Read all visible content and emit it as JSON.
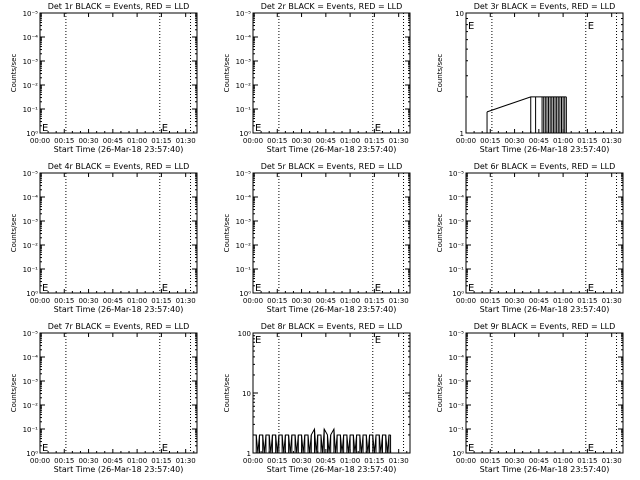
{
  "chart_data": [
    {
      "type": "line",
      "title": "Det 1r BLACK = Events, RED = LLD",
      "xlabel": "Start Time (26-Mar-18 23:57:40)",
      "ylabel": "Counts/sec",
      "x_tick_labels": [
        "00:00",
        "00:15",
        "00:30",
        "00:45",
        "01:00",
        "01:15",
        "01:30"
      ],
      "x_range_minutes": [
        0,
        97
      ],
      "y_scale": "log",
      "y_tick_labels": [
        "10⁰",
        "10⁻¹",
        "10⁻²",
        "10⁻³",
        "10⁻⁴",
        "10⁻⁵"
      ],
      "vlines_minutes": [
        16,
        74,
        93
      ],
      "series": [],
      "e_markers": [
        {
          "x": 0,
          "y_frac": 0.05
        },
        {
          "x": 74,
          "y_frac": 0.05
        }
      ]
    },
    {
      "type": "line",
      "title": "Det 2r BLACK = Events, RED = LLD",
      "xlabel": "Start Time (26-Mar-18 23:57:40)",
      "ylabel": "Counts/sec",
      "x_tick_labels": [
        "00:00",
        "00:15",
        "00:30",
        "00:45",
        "01:00",
        "01:15",
        "01:30"
      ],
      "x_range_minutes": [
        0,
        97
      ],
      "y_scale": "log",
      "y_tick_labels": [
        "10⁰",
        "10⁻¹",
        "10⁻²",
        "10⁻³",
        "10⁻⁴",
        "10⁻⁵"
      ],
      "vlines_minutes": [
        16,
        74,
        93
      ],
      "series": [],
      "e_markers": [
        {
          "x": 0,
          "y_frac": 0.05
        },
        {
          "x": 74,
          "y_frac": 0.05
        }
      ]
    },
    {
      "type": "line",
      "title": "Det 3r BLACK = Events, RED = LLD",
      "xlabel": "Start Time (26-Mar-18 23:57:40)",
      "ylabel": "Counts/sec",
      "x_tick_labels": [
        "00:00",
        "00:15",
        "00:30",
        "00:45",
        "01:00",
        "01:15",
        "01:30"
      ],
      "x_range_minutes": [
        0,
        97
      ],
      "y_scale": "log",
      "y_tick_labels": [
        "1",
        "10"
      ],
      "vlines_minutes": [
        16,
        74,
        93
      ],
      "series": [
        {
          "values": [
            [
              13,
              1.5
            ],
            [
              40,
              2
            ],
            [
              43,
              2
            ],
            [
              47,
              2
            ],
            [
              48,
              2
            ],
            [
              49,
              2
            ],
            [
              50,
              2
            ],
            [
              51,
              2
            ],
            [
              52,
              2
            ],
            [
              53,
              2
            ],
            [
              54,
              2
            ],
            [
              55,
              2
            ],
            [
              56,
              2
            ],
            [
              57,
              2
            ],
            [
              58,
              2
            ],
            [
              59,
              2
            ],
            [
              60,
              2
            ],
            [
              61,
              2
            ],
            [
              62,
              2
            ]
          ]
        }
      ],
      "e_markers": [
        {
          "x": 0,
          "y_frac": 0.9
        },
        {
          "x": 74,
          "y_frac": 0.9
        }
      ]
    },
    {
      "type": "line",
      "title": "Det 4r BLACK = Events, RED = LLD",
      "xlabel": "Start Time (26-Mar-18 23:57:40)",
      "ylabel": "Counts/sec",
      "x_tick_labels": [
        "00:00",
        "00:15",
        "00:30",
        "00:45",
        "01:00",
        "01:15",
        "01:30"
      ],
      "x_range_minutes": [
        0,
        97
      ],
      "y_scale": "log",
      "y_tick_labels": [
        "10⁰",
        "10⁻¹",
        "10⁻²",
        "10⁻³",
        "10⁻⁴",
        "10⁻⁵"
      ],
      "vlines_minutes": [
        16,
        74,
        93
      ],
      "series": [],
      "e_markers": [
        {
          "x": 0,
          "y_frac": 0.05
        },
        {
          "x": 74,
          "y_frac": 0.05
        }
      ]
    },
    {
      "type": "line",
      "title": "Det 5r BLACK = Events, RED = LLD",
      "xlabel": "Start Time (26-Mar-18 23:57:40)",
      "ylabel": "Counts/sec",
      "x_tick_labels": [
        "00:00",
        "00:15",
        "00:30",
        "00:45",
        "01:00",
        "01:15",
        "01:30"
      ],
      "x_range_minutes": [
        0,
        97
      ],
      "y_scale": "log",
      "y_tick_labels": [
        "10⁰",
        "10⁻¹",
        "10⁻²",
        "10⁻³",
        "10⁻⁴",
        "10⁻⁵"
      ],
      "vlines_minutes": [
        16,
        74,
        93
      ],
      "series": [],
      "e_markers": [
        {
          "x": 0,
          "y_frac": 0.05
        },
        {
          "x": 74,
          "y_frac": 0.05
        }
      ]
    },
    {
      "type": "line",
      "title": "Det 6r BLACK = Events, RED = LLD",
      "xlabel": "Start Time (26-Mar-18 23:57:40)",
      "ylabel": "Counts/sec",
      "x_tick_labels": [
        "00:00",
        "00:15",
        "00:30",
        "00:45",
        "01:00",
        "01:15",
        "01:30"
      ],
      "x_range_minutes": [
        0,
        97
      ],
      "y_scale": "log",
      "y_tick_labels": [
        "10⁰",
        "10⁻¹",
        "10⁻²",
        "10⁻³",
        "10⁻⁴",
        "10⁻⁵"
      ],
      "vlines_minutes": [
        16,
        74,
        93
      ],
      "series": [],
      "e_markers": [
        {
          "x": 0,
          "y_frac": 0.05
        },
        {
          "x": 74,
          "y_frac": 0.05
        }
      ]
    },
    {
      "type": "line",
      "title": "Det 7r BLACK = Events, RED = LLD",
      "xlabel": "Start Time (26-Mar-18 23:57:40)",
      "ylabel": "Counts/sec",
      "x_tick_labels": [
        "00:00",
        "00:15",
        "00:30",
        "00:45",
        "01:00",
        "01:15",
        "01:30"
      ],
      "x_range_minutes": [
        0,
        97
      ],
      "y_scale": "log",
      "y_tick_labels": [
        "10⁰",
        "10⁻¹",
        "10⁻²",
        "10⁻³",
        "10⁻⁴",
        "10⁻⁵"
      ],
      "vlines_minutes": [
        16,
        74,
        93
      ],
      "series": [],
      "e_markers": [
        {
          "x": 0,
          "y_frac": 0.05
        },
        {
          "x": 74,
          "y_frac": 0.05
        }
      ]
    },
    {
      "type": "line",
      "title": "Det 8r BLACK = Events, RED = LLD",
      "xlabel": "Start Time (26-Mar-18 23:57:40)",
      "ylabel": "Counts/sec",
      "x_tick_labels": [
        "00:00",
        "00:15",
        "00:30",
        "00:45",
        "01:00",
        "01:15",
        "01:30"
      ],
      "x_range_minutes": [
        0,
        97
      ],
      "y_scale": "log",
      "y_tick_labels": [
        "1",
        "10",
        "100"
      ],
      "vlines_minutes": [
        16,
        74,
        93
      ],
      "series": [
        {
          "values": [
            [
              0,
              2
            ],
            [
              2,
              2
            ],
            [
              3,
              1
            ],
            [
              4,
              2
            ],
            [
              6,
              2
            ],
            [
              7,
              1
            ],
            [
              8,
              2
            ],
            [
              10,
              2
            ],
            [
              11,
              1
            ],
            [
              12,
              2
            ],
            [
              14,
              2
            ],
            [
              15,
              1
            ],
            [
              16,
              2
            ],
            [
              18,
              2
            ],
            [
              19,
              1
            ],
            [
              20,
              2
            ],
            [
              22,
              2
            ],
            [
              23,
              1
            ],
            [
              24,
              2
            ],
            [
              26,
              2
            ],
            [
              27,
              1
            ],
            [
              28,
              2
            ],
            [
              30,
              2
            ],
            [
              31,
              1
            ],
            [
              32,
              2
            ],
            [
              34,
              2
            ],
            [
              35,
              1
            ],
            [
              36,
              2
            ],
            [
              38,
              2.5
            ],
            [
              39,
              1
            ],
            [
              40,
              2
            ],
            [
              42,
              2
            ],
            [
              43,
              1
            ],
            [
              44,
              2.5
            ],
            [
              46,
              2
            ],
            [
              47,
              1
            ],
            [
              48,
              2
            ],
            [
              50,
              2.5
            ],
            [
              51,
              1
            ],
            [
              52,
              2
            ],
            [
              54,
              2
            ],
            [
              55,
              1
            ],
            [
              56,
              2
            ],
            [
              58,
              2
            ],
            [
              59,
              1
            ],
            [
              60,
              2
            ],
            [
              62,
              2
            ],
            [
              63,
              1
            ],
            [
              64,
              2
            ],
            [
              66,
              2
            ],
            [
              67,
              1
            ],
            [
              68,
              2
            ],
            [
              70,
              2
            ],
            [
              71,
              1
            ],
            [
              72,
              2
            ],
            [
              74,
              2
            ],
            [
              75,
              1
            ],
            [
              76,
              2
            ],
            [
              78,
              2
            ],
            [
              79,
              1
            ],
            [
              80,
              2
            ],
            [
              82,
              2
            ],
            [
              83,
              1
            ],
            [
              84,
              2
            ],
            [
              85,
              2
            ]
          ]
        }
      ],
      "e_markers": [
        {
          "x": 0,
          "y_frac": 0.95
        },
        {
          "x": 74,
          "y_frac": 0.95
        }
      ]
    },
    {
      "type": "line",
      "title": "Det 9r BLACK = Events, RED = LLD",
      "xlabel": "Start Time (26-Mar-18 23:57:40)",
      "ylabel": "Counts/sec",
      "x_tick_labels": [
        "00:00",
        "00:15",
        "00:30",
        "00:45",
        "01:00",
        "01:15",
        "01:30"
      ],
      "x_range_minutes": [
        0,
        97
      ],
      "y_scale": "log",
      "y_tick_labels": [
        "10⁰",
        "10⁻¹",
        "10⁻²",
        "10⁻³",
        "10⁻⁴",
        "10⁻⁵"
      ],
      "vlines_minutes": [
        16,
        74,
        93
      ],
      "series": [],
      "e_markers": [
        {
          "x": 0,
          "y_frac": 0.05
        },
        {
          "x": 74,
          "y_frac": 0.05
        }
      ]
    }
  ]
}
